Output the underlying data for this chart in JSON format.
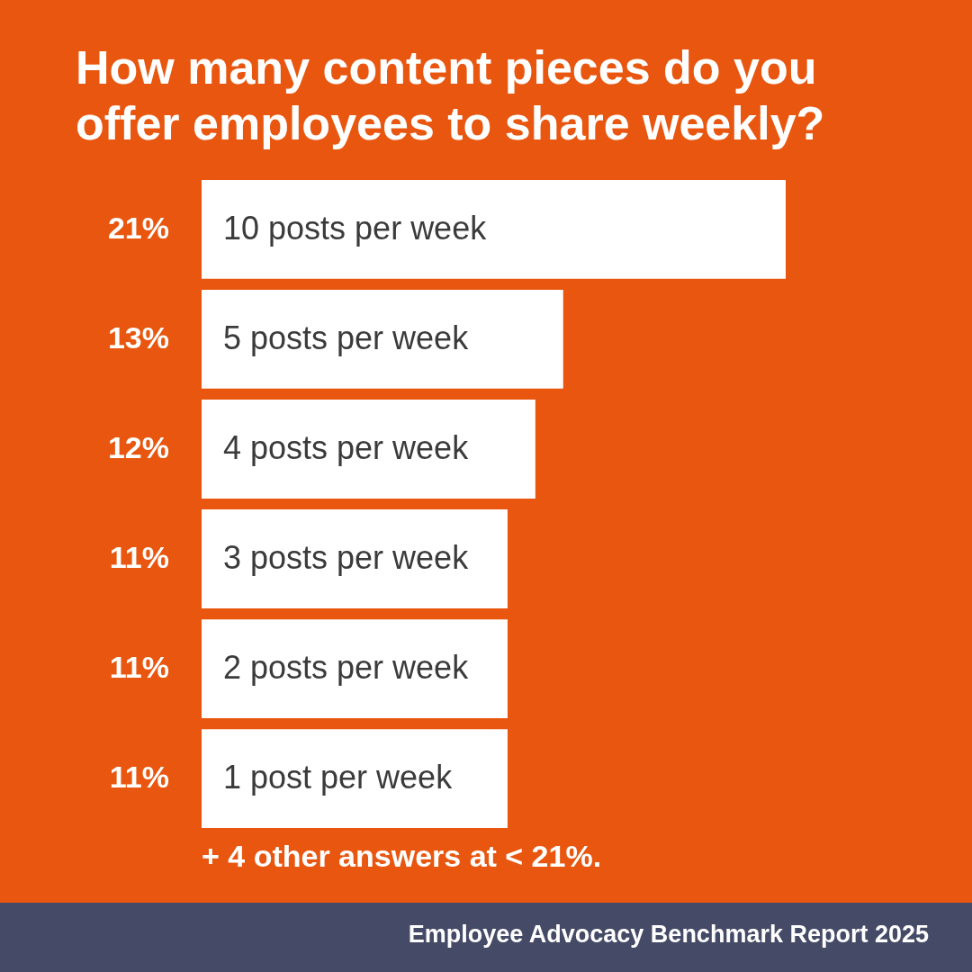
{
  "chart_data": {
    "type": "bar",
    "orientation": "horizontal",
    "title": "How many content pieces do you offer employees to share weekly?",
    "categories": [
      "10 posts per week",
      "5 posts per week",
      "4 posts per week",
      "3 posts per week",
      "2 posts per week",
      "1 post per week"
    ],
    "values": [
      21,
      13,
      12,
      11,
      11,
      11
    ],
    "value_labels": [
      "21%",
      "13%",
      "12%",
      "11%",
      "11%",
      "11%"
    ],
    "color": "#ffffff",
    "tick_labels": false,
    "annotations": [
      "+ 4 other answers at < 21%.",
      "Employee Advocacy Benchmark Report 2025"
    ]
  }
}
